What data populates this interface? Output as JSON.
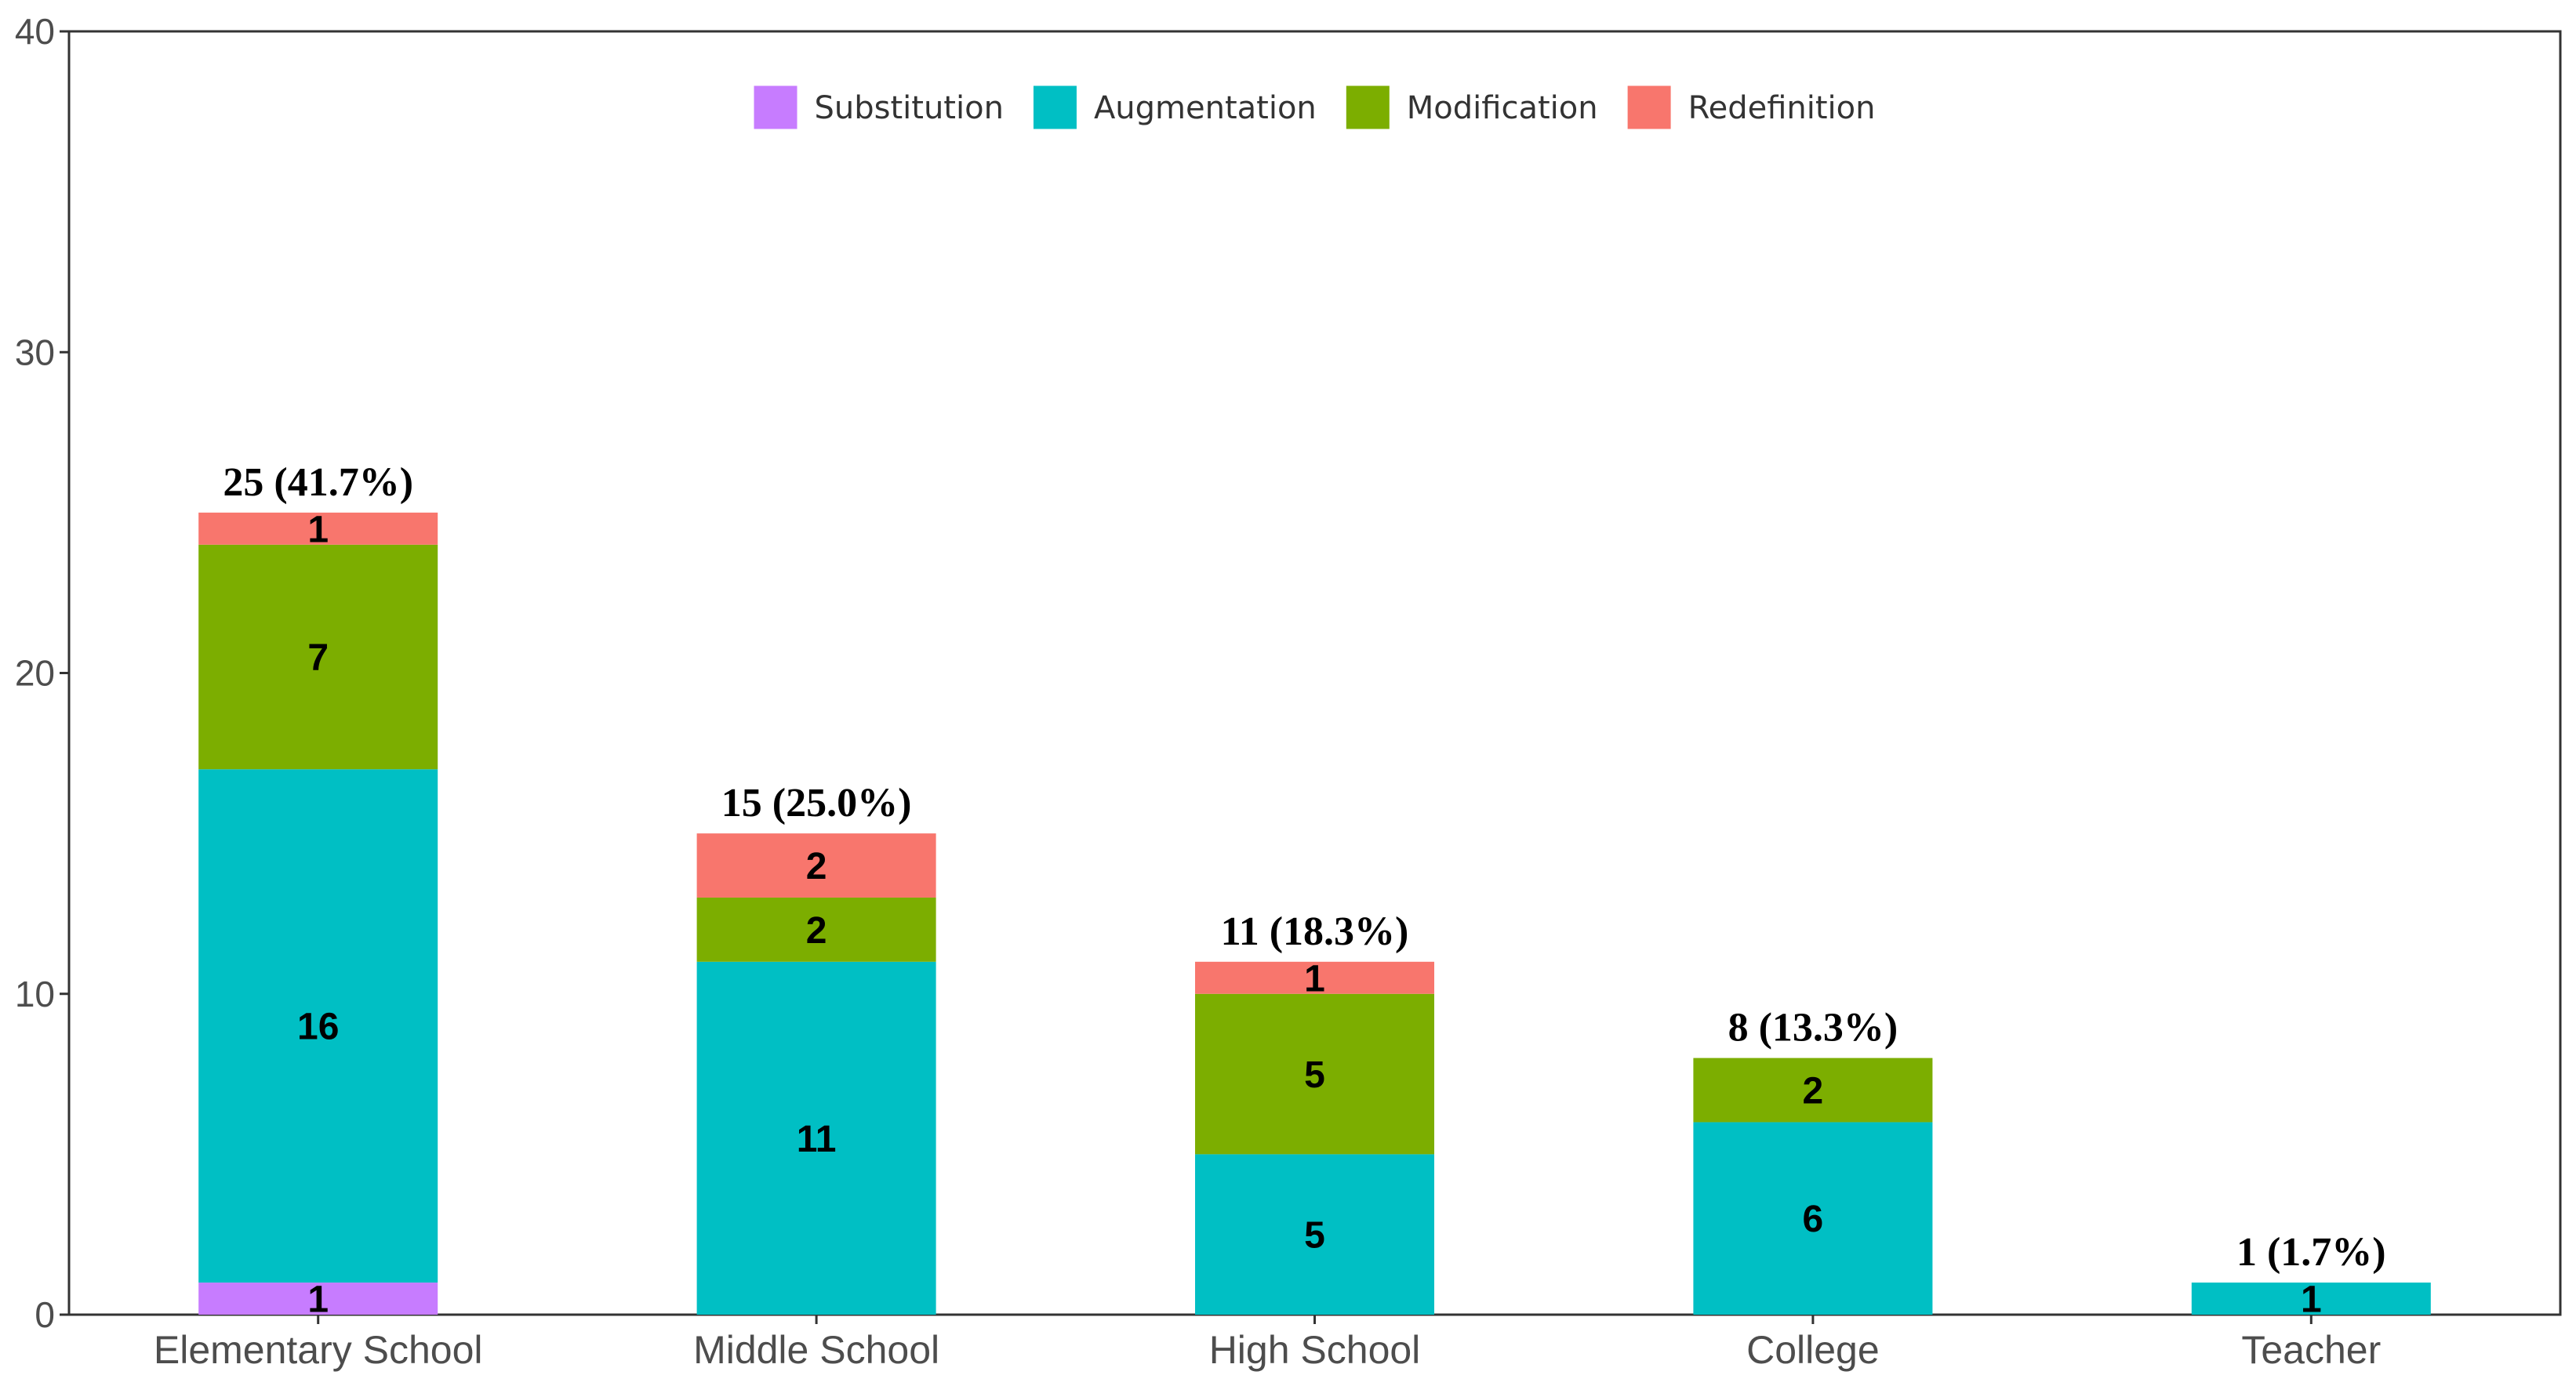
{
  "chart_data": {
    "type": "bar",
    "stacked": true,
    "title": "",
    "xlabel": "",
    "ylabel": "",
    "ylim": [
      0,
      40
    ],
    "yticks": [
      0,
      10,
      20,
      30,
      40
    ],
    "grid": false,
    "legend_position": "top-center",
    "categories": [
      "Elementary School",
      "Middle School",
      "High School",
      "College",
      "Teacher"
    ],
    "series": [
      {
        "name": "Substitution",
        "color": "#C77CFF",
        "values": [
          1,
          0,
          0,
          0,
          0
        ]
      },
      {
        "name": "Augmentation",
        "color": "#00BFC4",
        "values": [
          16,
          11,
          5,
          6,
          1
        ]
      },
      {
        "name": "Modification",
        "color": "#7CAE00",
        "values": [
          7,
          2,
          5,
          2,
          0
        ]
      },
      {
        "name": "Redefinition",
        "color": "#F8766D",
        "values": [
          1,
          2,
          1,
          0,
          0
        ]
      }
    ],
    "totals": [
      {
        "value": 25,
        "label": "25 (41.7%)"
      },
      {
        "value": 15,
        "label": "15 (25.0%)"
      },
      {
        "value": 11,
        "label": "11 (18.3%)"
      },
      {
        "value": 8,
        "label": "8 (13.3%)"
      },
      {
        "value": 1,
        "label": "1 (1.7%)"
      }
    ]
  }
}
